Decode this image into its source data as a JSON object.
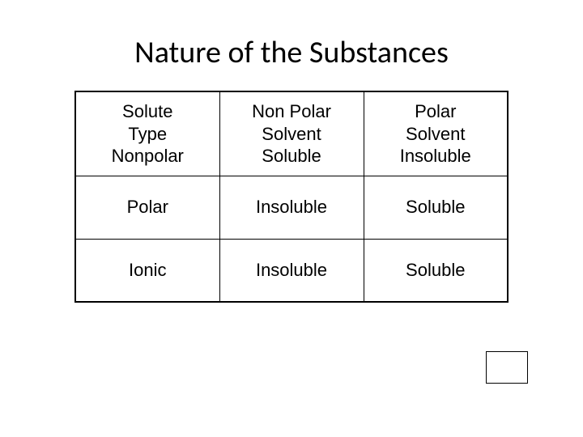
{
  "title": "Nature of the Substances",
  "table": {
    "columns": [
      {
        "line1": "Solute",
        "line2": "Type"
      },
      {
        "line1": "Non Polar",
        "line2": "Solvent"
      },
      {
        "line1": "Polar",
        "line2": "Solvent"
      }
    ],
    "rows": [
      {
        "label": "Nonpolar",
        "c1": "Soluble",
        "c2": "Insoluble"
      },
      {
        "label": "Polar",
        "c1": "Insoluble",
        "c2": "Soluble"
      },
      {
        "label": "Ionic",
        "c1": "Insoluble",
        "c2": "Soluble"
      }
    ]
  },
  "colors": {
    "background": "#ffffff",
    "text": "#000000",
    "border": "#000000"
  },
  "fonts": {
    "title_family": "Calibri",
    "title_size_pt": 28,
    "body_family": "Arial",
    "body_size_pt": 16
  }
}
